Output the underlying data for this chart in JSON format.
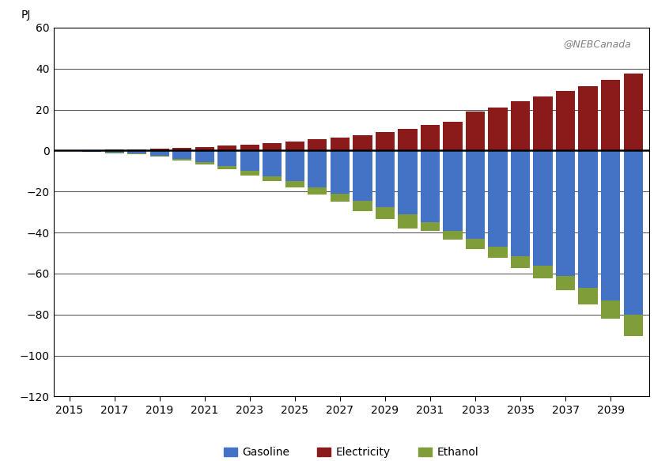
{
  "years": [
    2015,
    2016,
    2017,
    2018,
    2019,
    2020,
    2021,
    2022,
    2023,
    2024,
    2025,
    2026,
    2027,
    2028,
    2029,
    2030,
    2031,
    2032,
    2033,
    2034,
    2035,
    2036,
    2037,
    2038,
    2039,
    2040
  ],
  "gasoline": [
    0,
    -0.5,
    -1.0,
    -1.5,
    -2.5,
    -4.0,
    -5.5,
    -7.5,
    -10.0,
    -12.5,
    -15.0,
    -18.0,
    -21.0,
    -24.5,
    -27.5,
    -31.0,
    -35.0,
    -39.0,
    -43.0,
    -47.0,
    -51.5,
    -56.0,
    -61.0,
    -67.0,
    -73.0,
    -80.0
  ],
  "electricity": [
    0,
    0.2,
    0.4,
    0.6,
    0.8,
    1.2,
    1.8,
    2.3,
    3.0,
    3.8,
    4.5,
    5.5,
    6.5,
    7.5,
    9.0,
    10.5,
    12.5,
    14.0,
    19.0,
    21.0,
    24.0,
    26.5,
    29.0,
    31.5,
    34.5,
    37.5
  ],
  "ethanol": [
    0,
    0,
    -0.2,
    -0.3,
    -0.5,
    -0.8,
    -1.2,
    -1.5,
    -2.0,
    -2.5,
    -3.0,
    -3.5,
    -4.0,
    -5.0,
    -6.0,
    -7.0,
    -4.0,
    -4.5,
    -5.0,
    -5.5,
    -6.0,
    -6.5,
    -7.0,
    -8.0,
    -9.0,
    -10.5
  ],
  "gasoline_color": "#4472C4",
  "electricity_color": "#8B1A1A",
  "ethanol_color": "#7F9E3A",
  "ylabel": "PJ",
  "ylim": [
    -120,
    60
  ],
  "yticks": [
    -120,
    -100,
    -80,
    -60,
    -40,
    -20,
    0,
    20,
    40,
    60
  ],
  "watermark": "@NEBCanada",
  "legend_labels": [
    "Gasoline",
    "Electricity",
    "Ethanol"
  ],
  "background_color": "#FFFFFF"
}
